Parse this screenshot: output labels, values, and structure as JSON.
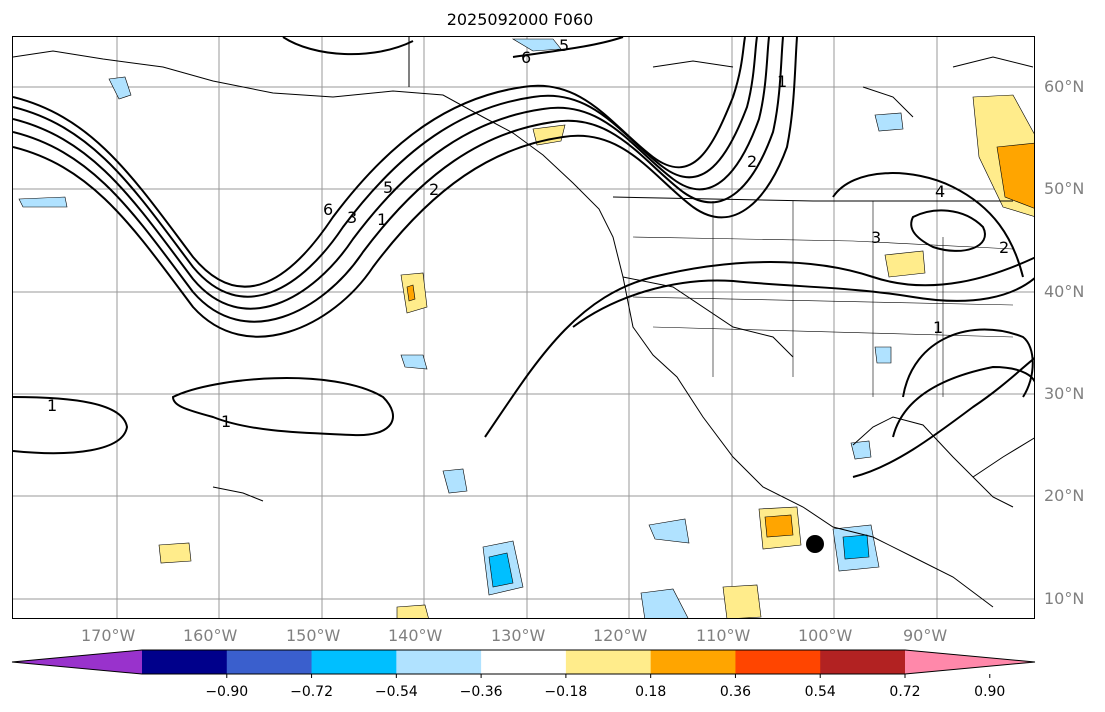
{
  "title": "2025092000 F060",
  "lat_labels": [
    "60°N",
    "50°N",
    "40°N",
    "30°N",
    "20°N",
    "10°N"
  ],
  "lon_labels": [
    "170°W",
    "160°W",
    "150°W",
    "140°W",
    "130°W",
    "120°W",
    "110°W",
    "100°W",
    "90°W"
  ],
  "contour_labels": [
    "1",
    "1",
    "1",
    "1",
    "2",
    "2",
    "3",
    "3",
    "4",
    "5",
    "5",
    "6",
    "6",
    "2",
    "1"
  ],
  "colorbar": {
    "ticks": [
      "−0.90",
      "−0.72",
      "−0.54",
      "−0.36",
      "−0.18",
      "0.18",
      "0.36",
      "0.54",
      "0.72",
      "0.90"
    ],
    "colors": [
      "#9932cc",
      "#00008b",
      "#3a5fcd",
      "#00bfff",
      "#b0e2ff",
      "#ffffff",
      "#ffec8b",
      "#ffa500",
      "#ff4500",
      "#b22222",
      "#ff88aa"
    ]
  }
}
